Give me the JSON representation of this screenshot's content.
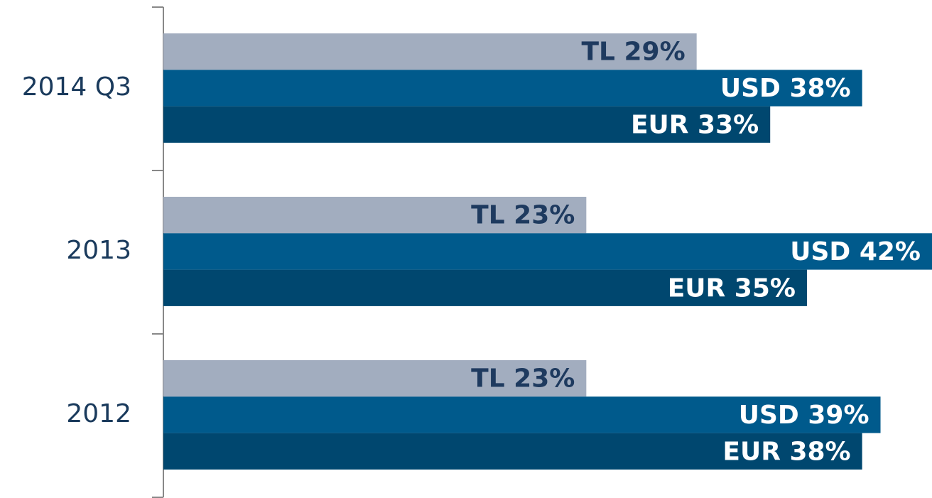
{
  "chart_data": {
    "type": "hbar",
    "categories": [
      "2014 Q3",
      "2013",
      "2012"
    ],
    "series": [
      {
        "color": "#a2adbf",
        "label_color": "#1e3a5f",
        "values": [
          29,
          23,
          23
        ],
        "value_labels": [
          "TL 29%",
          "TL 23%",
          "TL 23%"
        ]
      },
      {
        "color": "#005a8c",
        "label_color": "#ffffff",
        "values": [
          38,
          42,
          39
        ],
        "value_labels": [
          "USD 38%",
          "USD 42%",
          "USD 39%"
        ]
      },
      {
        "color": "#00476f",
        "label_color": "#ffffff",
        "values": [
          33,
          35,
          38
        ],
        "value_labels": [
          "EUR 33%",
          "EUR 35%",
          "EUR 38%"
        ]
      }
    ],
    "xlim": [
      0,
      41.8
    ]
  }
}
